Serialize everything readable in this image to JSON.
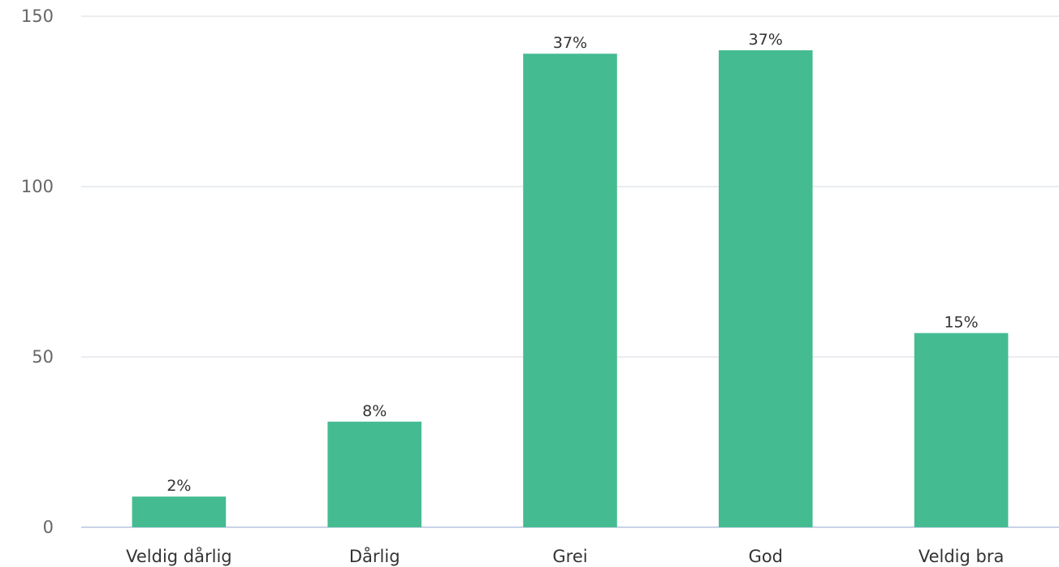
{
  "chart_data": {
    "type": "bar",
    "categories": [
      "Veldig dårlig",
      "Dårlig",
      "Grei",
      "God",
      "Veldig bra"
    ],
    "values": [
      9,
      31,
      139,
      140,
      57
    ],
    "data_labels": [
      "2%",
      "8%",
      "37%",
      "37%",
      "15%"
    ],
    "ylim": [
      0,
      150
    ],
    "yticks": [
      0,
      50,
      100,
      150
    ],
    "grid": true,
    "legend": "none",
    "colors": {
      "bar": "#45bb91"
    }
  }
}
